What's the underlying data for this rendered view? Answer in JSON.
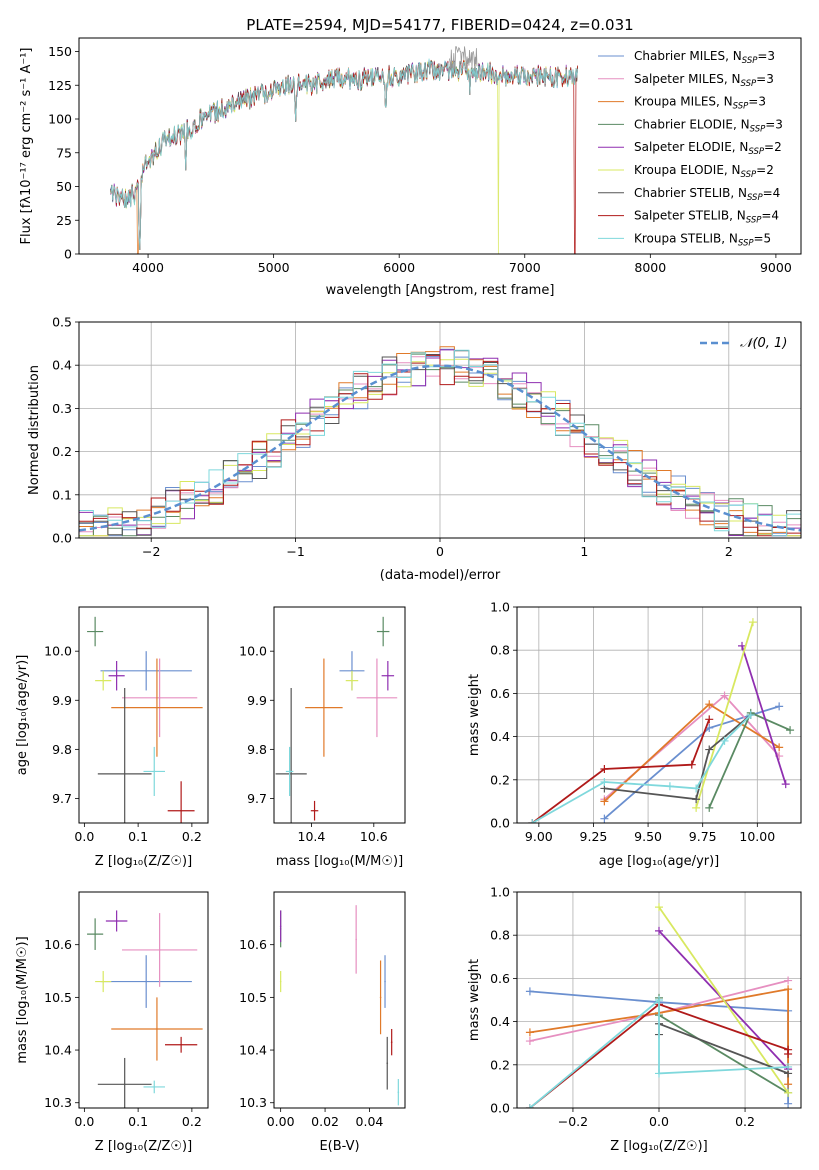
{
  "chart_data": [
    {
      "type": "line",
      "panel": "spectrum",
      "title": "PLATE=2594, MJD=54177, FIBERID=0424, z=0.031",
      "xlabel": "wavelength [Angstrom, rest frame]",
      "ylabel": "Flux [fλ10⁻¹⁷ erg cm⁻² s⁻¹ A⁻¹]",
      "xlim": [
        3450,
        9200
      ],
      "ylim": [
        0,
        160
      ],
      "xticks": [
        4000,
        5000,
        6000,
        7000,
        8000,
        9000
      ],
      "yticks": [
        0,
        25,
        50,
        75,
        100,
        125,
        150
      ],
      "legend_position": "upper right",
      "legend": [
        {
          "label": "Chabrier MILES, N",
          "sub": "SSP",
          "suffix": "=3",
          "color": "#6a8fcf"
        },
        {
          "label": "Salpeter MILES, N",
          "sub": "SSP",
          "suffix": "=3",
          "color": "#e68fc0"
        },
        {
          "label": "Kroupa MILES, N",
          "sub": "SSP",
          "suffix": "=3",
          "color": "#e07a2a"
        },
        {
          "label": "Chabrier ELODIE, N",
          "sub": "SSP",
          "suffix": "=3",
          "color": "#5a8a63"
        },
        {
          "label": "Salpeter ELODIE, N",
          "sub": "SSP",
          "suffix": "=2",
          "color": "#8f2fb0"
        },
        {
          "label": "Kroupa ELODIE, N",
          "sub": "SSP",
          "suffix": "=2",
          "color": "#d8e860"
        },
        {
          "label": "Chabrier STELIB, N",
          "sub": "SSP",
          "suffix": "=4",
          "color": "#555555"
        },
        {
          "label": "Salpeter STELIB, N",
          "sub": "SSP",
          "suffix": "=4",
          "color": "#b01a1a"
        },
        {
          "label": "Kroupa STELIB, N",
          "sub": "SSP",
          "suffix": "=5",
          "color": "#7fd8dc"
        }
      ],
      "continuum_points": [
        [
          3700,
          45
        ],
        [
          3800,
          40
        ],
        [
          3900,
          45
        ],
        [
          3980,
          65
        ],
        [
          4050,
          75
        ],
        [
          4150,
          85
        ],
        [
          4300,
          90
        ],
        [
          4450,
          103
        ],
        [
          4550,
          105
        ],
        [
          4700,
          112
        ],
        [
          4900,
          118
        ],
        [
          5100,
          125
        ],
        [
          5300,
          125
        ],
        [
          5500,
          130
        ],
        [
          5800,
          130
        ],
        [
          6000,
          132
        ],
        [
          6200,
          136
        ],
        [
          6400,
          135
        ],
        [
          6600,
          135
        ],
        [
          6800,
          133
        ],
        [
          7000,
          132
        ],
        [
          7200,
          131
        ],
        [
          7400,
          132
        ]
      ],
      "absorption_dips": [
        [
          3933,
          0
        ],
        [
          4300,
          62
        ],
        [
          5175,
          95
        ],
        [
          5893,
          100
        ],
        [
          6563,
          115
        ]
      ],
      "model_drops": [
        [
          3920,
          "#e07a2a"
        ],
        [
          6790,
          "#d8e860"
        ],
        [
          7400,
          "#b01a1a"
        ]
      ]
    },
    {
      "type": "bar",
      "panel": "residual_histogram",
      "xlabel": "(data-model)/error",
      "ylabel": "Normed distribution",
      "xlim": [
        -2.5,
        2.5
      ],
      "ylim": [
        0,
        0.5
      ],
      "xticks": [
        -2,
        -1,
        0,
        1,
        2
      ],
      "yticks": [
        0.0,
        0.1,
        0.2,
        0.3,
        0.4,
        0.5
      ],
      "bin_width": 0.1,
      "reference_curve": {
        "label": "𝒩(0, 1)",
        "mean": 0,
        "sigma": 1,
        "color": "#5a8fd0"
      },
      "grid": true
    },
    {
      "type": "scatter",
      "panel": "Z_vs_age",
      "xlabel": "Z [log₁₀(Z/Z☉)]",
      "ylabel": "age  [log₁₀(age/yr)]",
      "xlim": [
        -0.01,
        0.23
      ],
      "ylim": [
        9.65,
        10.09
      ],
      "xticks": [
        0.0,
        0.1,
        0.2
      ],
      "yticks": [
        9.7,
        9.8,
        9.9,
        10.0
      ],
      "points": [
        {
          "x": 0.115,
          "y": 9.96,
          "xerr": 0.085,
          "yerr": 0.04,
          "color": "#6a8fcf"
        },
        {
          "x": 0.14,
          "y": 9.905,
          "xerr": 0.07,
          "yerr": 0.08,
          "color": "#e68fc0"
        },
        {
          "x": 0.135,
          "y": 9.885,
          "xerr": 0.085,
          "yerr": 0.1,
          "color": "#e07a2a"
        },
        {
          "x": 0.02,
          "y": 10.04,
          "xerr": 0.015,
          "yerr": 0.03,
          "color": "#5a8a63"
        },
        {
          "x": 0.06,
          "y": 9.95,
          "xerr": 0.015,
          "yerr": 0.03,
          "color": "#8f2fb0"
        },
        {
          "x": 0.035,
          "y": 9.94,
          "xerr": 0.015,
          "yerr": 0.02,
          "color": "#d8e860"
        },
        {
          "x": 0.075,
          "y": 9.75,
          "xerr": 0.05,
          "yerr": 0.175,
          "color": "#555555"
        },
        {
          "x": 0.18,
          "y": 9.675,
          "xerr": 0.025,
          "yerr": 0.06,
          "color": "#b01a1a"
        },
        {
          "x": 0.13,
          "y": 9.755,
          "xerr": 0.02,
          "yerr": 0.05,
          "color": "#7fd8dc"
        }
      ]
    },
    {
      "type": "scatter",
      "panel": "mass_vs_age",
      "xlabel": "mass [log₁₀(M/M☉)]",
      "ylabel": "",
      "xlim": [
        10.28,
        10.7
      ],
      "ylim": [
        9.65,
        10.09
      ],
      "xticks": [
        10.4,
        10.6
      ],
      "yticks": [
        9.7,
        9.8,
        9.9,
        10.0
      ],
      "points": [
        {
          "x": 10.53,
          "y": 9.96,
          "xerr": 0.04,
          "yerr": 0.04,
          "color": "#6a8fcf"
        },
        {
          "x": 10.61,
          "y": 9.905,
          "xerr": 0.065,
          "yerr": 0.08,
          "color": "#e68fc0"
        },
        {
          "x": 10.44,
          "y": 9.885,
          "xerr": 0.06,
          "yerr": 0.1,
          "color": "#e07a2a"
        },
        {
          "x": 10.63,
          "y": 10.04,
          "xerr": 0.02,
          "yerr": 0.03,
          "color": "#5a8a63"
        },
        {
          "x": 10.645,
          "y": 9.95,
          "xerr": 0.02,
          "yerr": 0.03,
          "color": "#8f2fb0"
        },
        {
          "x": 10.53,
          "y": 9.94,
          "xerr": 0.02,
          "yerr": 0.02,
          "color": "#d8e860"
        },
        {
          "x": 10.335,
          "y": 9.75,
          "xerr": 0.05,
          "yerr": 0.175,
          "color": "#555555"
        },
        {
          "x": 10.41,
          "y": 9.675,
          "xerr": 0.012,
          "yerr": 0.02,
          "color": "#b01a1a"
        },
        {
          "x": 10.33,
          "y": 9.755,
          "xerr": 0.012,
          "yerr": 0.05,
          "color": "#7fd8dc"
        }
      ]
    },
    {
      "type": "line",
      "panel": "age_vs_mass_weight",
      "xlabel": "age  [log₁₀(age/yr)]",
      "ylabel": "mass weight",
      "xlim": [
        8.9,
        10.2
      ],
      "ylim": [
        0,
        1
      ],
      "xticks": [
        9.0,
        9.25,
        9.5,
        9.75,
        10.0
      ],
      "xtick_labels": [
        "9.00",
        "9.25",
        "9.50",
        "9.75",
        "10.00"
      ],
      "yticks": [
        0.0,
        0.2,
        0.4,
        0.6,
        0.8,
        1.0
      ],
      "grid": true,
      "series": [
        {
          "color": "#6a8fcf",
          "points": [
            [
              9.3,
              0.02
            ],
            [
              9.78,
              0.44
            ],
            [
              10.1,
              0.54
            ]
          ]
        },
        {
          "color": "#e68fc0",
          "points": [
            [
              9.3,
              0.11
            ],
            [
              9.85,
              0.59
            ],
            [
              10.1,
              0.31
            ]
          ]
        },
        {
          "color": "#e07a2a",
          "points": [
            [
              9.3,
              0.1
            ],
            [
              9.78,
              0.55
            ],
            [
              10.1,
              0.35
            ]
          ]
        },
        {
          "color": "#5a8a63",
          "points": [
            [
              9.78,
              0.07
            ],
            [
              9.97,
              0.51
            ],
            [
              10.15,
              0.43
            ]
          ]
        },
        {
          "color": "#8f2fb0",
          "points": [
            [
              9.93,
              0.82
            ],
            [
              10.13,
              0.18
            ]
          ]
        },
        {
          "color": "#d8e860",
          "points": [
            [
              9.72,
              0.07
            ],
            [
              9.98,
              0.93
            ]
          ]
        },
        {
          "color": "#555555",
          "points": [
            [
              9.3,
              0.16
            ],
            [
              9.72,
              0.11
            ],
            [
              9.78,
              0.34
            ],
            [
              9.97,
              0.5
            ]
          ]
        },
        {
          "color": "#b01a1a",
          "points": [
            [
              8.97,
              0.0
            ],
            [
              9.3,
              0.25
            ],
            [
              9.7,
              0.27
            ],
            [
              9.78,
              0.48
            ]
          ]
        },
        {
          "color": "#7fd8dc",
          "points": [
            [
              8.97,
              0.0
            ],
            [
              9.3,
              0.19
            ],
            [
              9.6,
              0.17
            ],
            [
              9.72,
              0.16
            ],
            [
              9.85,
              0.38
            ],
            [
              9.97,
              0.5
            ]
          ]
        }
      ]
    },
    {
      "type": "scatter",
      "panel": "Z_vs_mass",
      "xlabel": "Z [log₁₀(Z/Z☉)]",
      "ylabel": "mass [log₁₀(M/M☉)]",
      "xlim": [
        -0.01,
        0.23
      ],
      "ylim": [
        10.29,
        10.7
      ],
      "xticks": [
        0.0,
        0.1,
        0.2
      ],
      "yticks": [
        10.3,
        10.4,
        10.5,
        10.6
      ],
      "points": [
        {
          "x": 0.115,
          "y": 10.53,
          "xerr": 0.085,
          "yerr": 0.05,
          "color": "#6a8fcf"
        },
        {
          "x": 0.14,
          "y": 10.59,
          "xerr": 0.07,
          "yerr": 0.07,
          "color": "#e68fc0"
        },
        {
          "x": 0.135,
          "y": 10.44,
          "xerr": 0.085,
          "yerr": 0.06,
          "color": "#e07a2a"
        },
        {
          "x": 0.02,
          "y": 10.62,
          "xerr": 0.015,
          "yerr": 0.03,
          "color": "#5a8a63"
        },
        {
          "x": 0.06,
          "y": 10.645,
          "xerr": 0.02,
          "yerr": 0.02,
          "color": "#8f2fb0"
        },
        {
          "x": 0.035,
          "y": 10.53,
          "xerr": 0.015,
          "yerr": 0.02,
          "color": "#d8e860"
        },
        {
          "x": 0.075,
          "y": 10.335,
          "xerr": 0.05,
          "yerr": 0.05,
          "color": "#555555"
        },
        {
          "x": 0.18,
          "y": 10.41,
          "xerr": 0.03,
          "yerr": 0.015,
          "color": "#b01a1a"
        },
        {
          "x": 0.13,
          "y": 10.33,
          "xerr": 0.02,
          "yerr": 0.012,
          "color": "#7fd8dc"
        }
      ]
    },
    {
      "type": "scatter",
      "panel": "EBV_vs_mass",
      "xlabel": "E(B-V)",
      "ylabel": "",
      "xlim": [
        -0.003,
        0.056
      ],
      "ylim": [
        10.29,
        10.7
      ],
      "xticks": [
        0.0,
        0.02,
        0.04
      ],
      "xtick_labels": [
        "0.00",
        "0.02",
        "0.04"
      ],
      "yticks": [
        10.3,
        10.4,
        10.5,
        10.6
      ],
      "points": [
        {
          "x": 0.047,
          "y": 10.53,
          "yerr": 0.05,
          "color": "#6a8fcf"
        },
        {
          "x": 0.034,
          "y": 10.61,
          "yerr": 0.065,
          "color": "#e68fc0"
        },
        {
          "x": 0.045,
          "y": 10.5,
          "yerr": 0.07,
          "color": "#e07a2a"
        },
        {
          "x": 0.0,
          "y": 10.63,
          "yerr": 0.035,
          "color": "#5a8a63"
        },
        {
          "x": 0.0,
          "y": 10.635,
          "yerr": 0.03,
          "color": "#8f2fb0"
        },
        {
          "x": 0.0,
          "y": 10.53,
          "yerr": 0.02,
          "color": "#d8e860"
        },
        {
          "x": 0.048,
          "y": 10.375,
          "yerr": 0.05,
          "color": "#555555"
        },
        {
          "x": 0.05,
          "y": 10.415,
          "yerr": 0.025,
          "color": "#b01a1a"
        },
        {
          "x": 0.053,
          "y": 10.32,
          "yerr": 0.025,
          "color": "#7fd8dc"
        }
      ]
    },
    {
      "type": "line",
      "panel": "Z_vs_mass_weight",
      "xlabel": "Z [log₁₀(Z/Z☉)]",
      "ylabel": "mass weight",
      "xlim": [
        -0.33,
        0.33
      ],
      "ylim": [
        0,
        1
      ],
      "xticks": [
        -0.2,
        0.0,
        0.2
      ],
      "xtick_labels": [
        "−0.2",
        "0.0",
        "0.2"
      ],
      "yticks": [
        0.0,
        0.2,
        0.4,
        0.6,
        0.8,
        1.0
      ],
      "grid": true,
      "series": [
        {
          "color": "#6a8fcf",
          "points": [
            [
              -0.3,
              0.54
            ],
            [
              0.0,
              0.49
            ],
            [
              0.3,
              0.45
            ],
            [
              0.3,
              0.02
            ]
          ]
        },
        {
          "color": "#e68fc0",
          "points": [
            [
              -0.3,
              0.31
            ],
            [
              0.0,
              0.44
            ],
            [
              0.3,
              0.59
            ]
          ]
        },
        {
          "color": "#e07a2a",
          "points": [
            [
              -0.3,
              0.35
            ],
            [
              0.0,
              0.44
            ],
            [
              0.3,
              0.55
            ],
            [
              0.3,
              0.11
            ]
          ]
        },
        {
          "color": "#5a8a63",
          "points": [
            [
              0.0,
              0.51
            ],
            [
              0.0,
              0.43
            ],
            [
              0.3,
              0.07
            ]
          ]
        },
        {
          "color": "#8f2fb0",
          "points": [
            [
              0.0,
              0.82
            ],
            [
              0.3,
              0.18
            ]
          ]
        },
        {
          "color": "#d8e860",
          "points": [
            [
              0.0,
              0.93
            ],
            [
              0.3,
              0.07
            ]
          ]
        },
        {
          "color": "#555555",
          "points": [
            [
              0.0,
              0.34
            ],
            [
              0.0,
              0.39
            ],
            [
              0.3,
              0.16
            ]
          ]
        },
        {
          "color": "#b01a1a",
          "points": [
            [
              -0.3,
              0.0
            ],
            [
              0.0,
              0.48
            ],
            [
              0.3,
              0.27
            ],
            [
              0.3,
              0.25
            ]
          ]
        },
        {
          "color": "#7fd8dc",
          "points": [
            [
              -0.3,
              0.0
            ],
            [
              0.0,
              0.5
            ],
            [
              0.0,
              0.16
            ],
            [
              0.3,
              0.19
            ]
          ]
        }
      ]
    }
  ]
}
